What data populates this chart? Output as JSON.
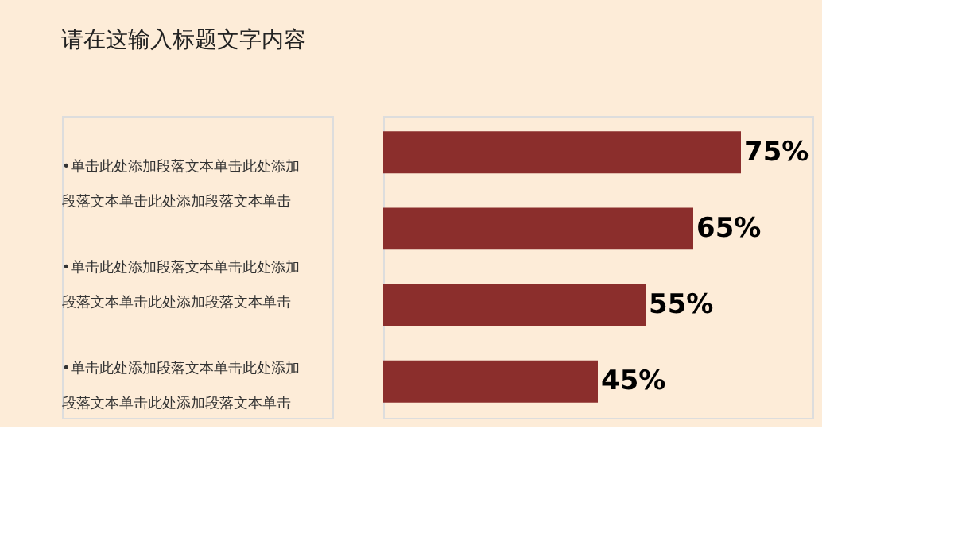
{
  "chart_data": {
    "type": "bar",
    "orientation": "horizontal",
    "title": "请在这输入标题文字内容",
    "categories": [
      null,
      null,
      null,
      null
    ],
    "values": [
      75,
      65,
      55,
      45
    ],
    "color": "#8b2e2c",
    "value_labels": [
      "75%",
      "65%",
      "55%",
      "45%"
    ],
    "tick_labels": false,
    "annotations": [
      "•单击此处添加段落文本单击此处添加段落文本单击此处添加段落文本单击",
      "•单击此处添加段落文本单击此处添加段落文本单击此处添加段落文本单击",
      "•单击此处添加段落文本单击此处添加段落文本单击此处添加段落文本单击"
    ]
  }
}
